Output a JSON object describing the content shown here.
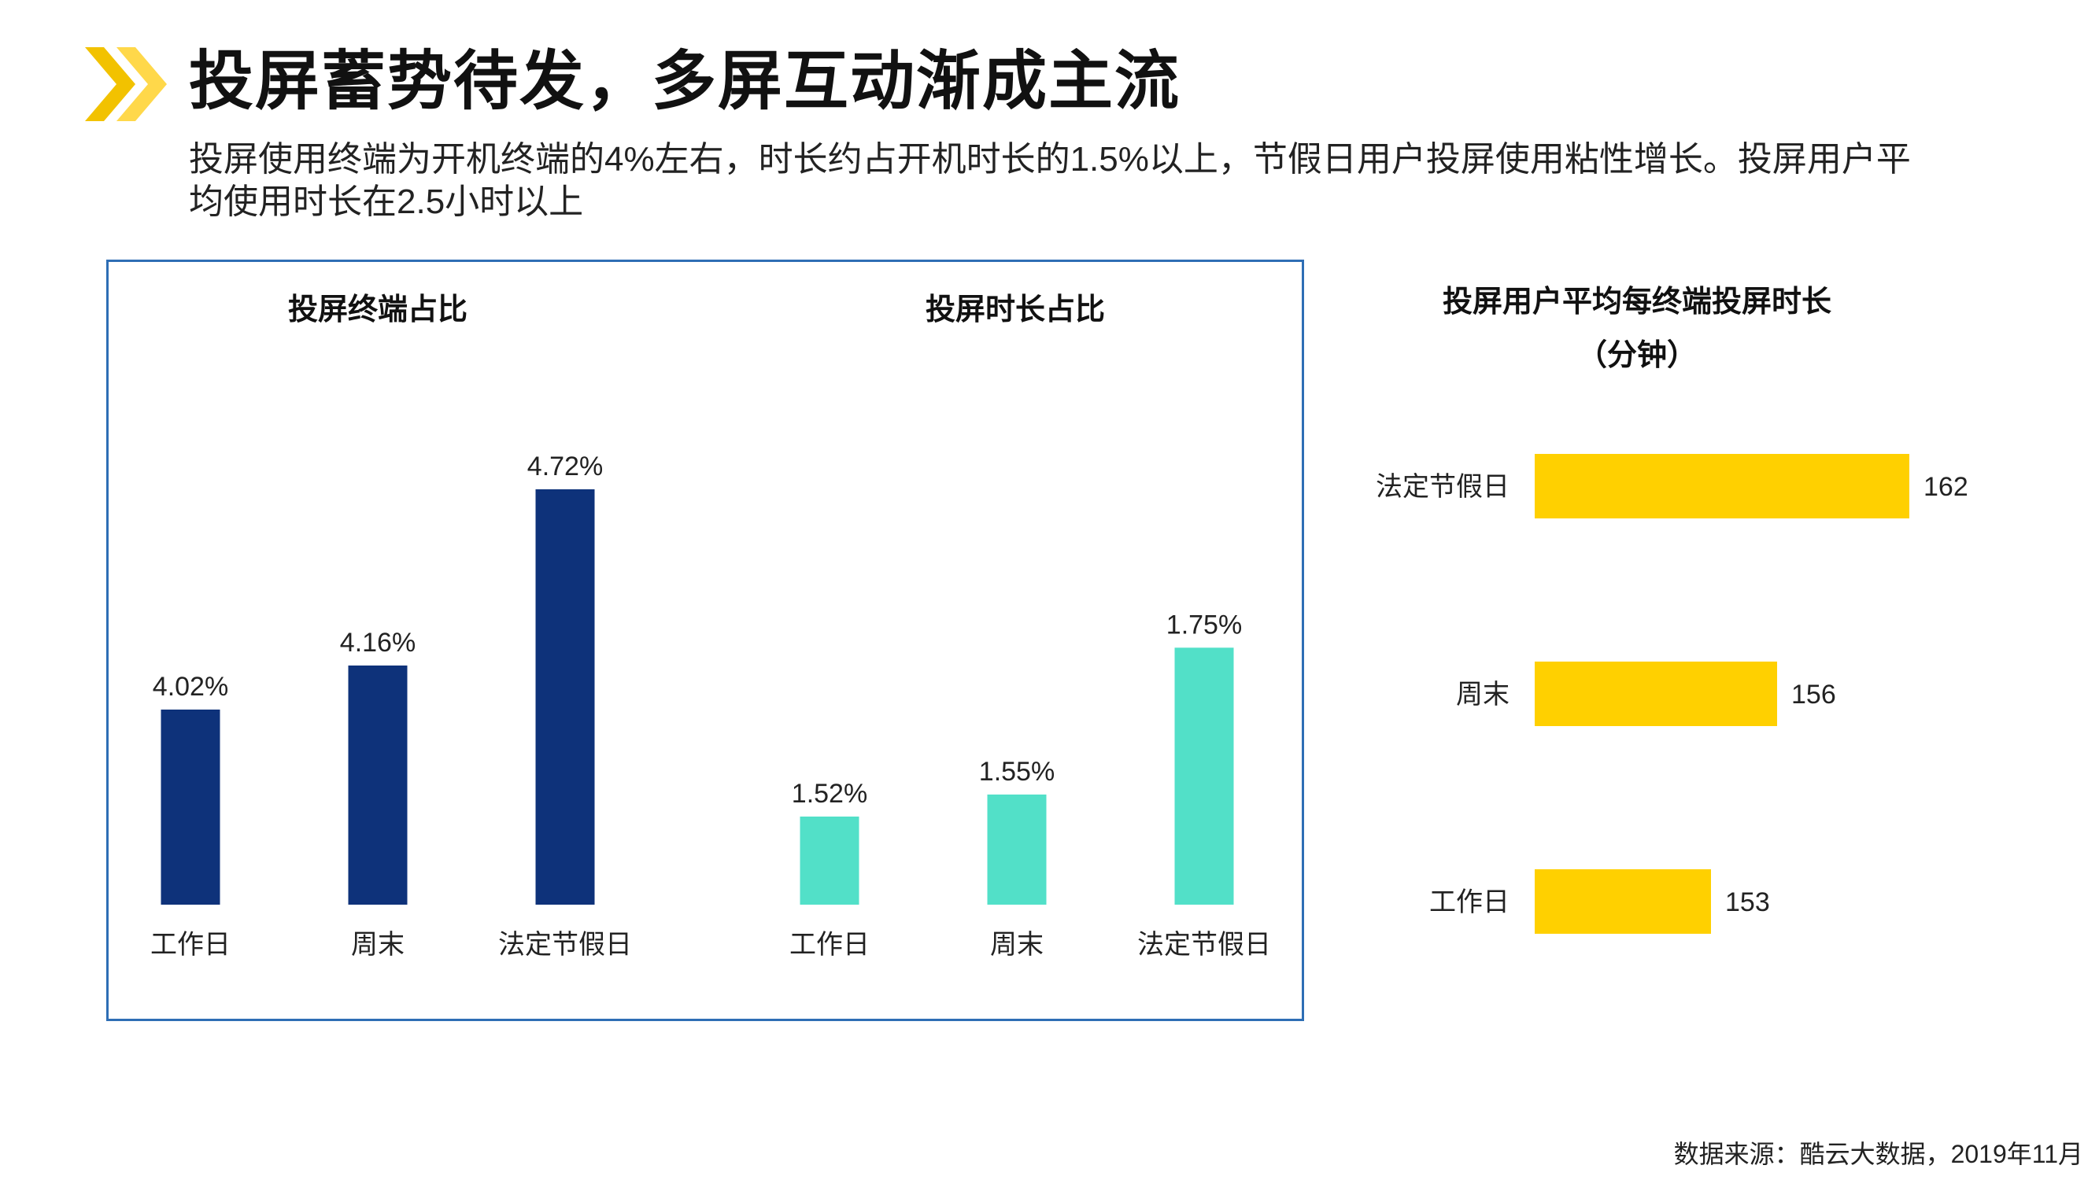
{
  "header": {
    "title": "投屏蓄势待发，多屏互动渐成主流",
    "description": "投屏使用终端为开机终端的4%左右，时长约占开机时长的1.5%以上，节假日用户投屏使用粘性增长。投屏用户平均使用时长在2.5小时以上",
    "logo": "double-chevron-icon"
  },
  "colors": {
    "navy": "#0e327a",
    "teal": "#52e0c8",
    "yellow": "#ffd000",
    "frame": "#2e6eb5"
  },
  "source": "数据来源：酷云大数据，2019年11月",
  "chart_data": [
    {
      "type": "bar",
      "title": "投屏终端占比",
      "categories": [
        "工作日",
        "周末",
        "法定节假日"
      ],
      "values": [
        4.02,
        4.16,
        4.72
      ],
      "value_labels": [
        "4.02%",
        "4.16%",
        "4.72%"
      ],
      "ylim": [
        3.4,
        4.8
      ],
      "color": "#0e327a",
      "xlabel": "",
      "ylabel": ""
    },
    {
      "type": "bar",
      "title": "投屏时长占比",
      "categories": [
        "工作日",
        "周末",
        "法定节假日"
      ],
      "values": [
        1.52,
        1.55,
        1.75
      ],
      "value_labels": [
        "1.52%",
        "1.55%",
        "1.75%"
      ],
      "ylim": [
        1.4,
        2.0
      ],
      "color": "#52e0c8",
      "xlabel": "",
      "ylabel": ""
    },
    {
      "type": "bar",
      "orientation": "horizontal",
      "title": "投屏用户平均每终端投屏时长",
      "subtitle": "（分钟）",
      "categories": [
        "法定节假日",
        "周末",
        "工作日"
      ],
      "values": [
        162,
        156,
        153
      ],
      "value_labels": [
        "162",
        "156",
        "153"
      ],
      "xlim": [
        145,
        165
      ],
      "color": "#ffd000",
      "xlabel": "",
      "ylabel": ""
    }
  ]
}
